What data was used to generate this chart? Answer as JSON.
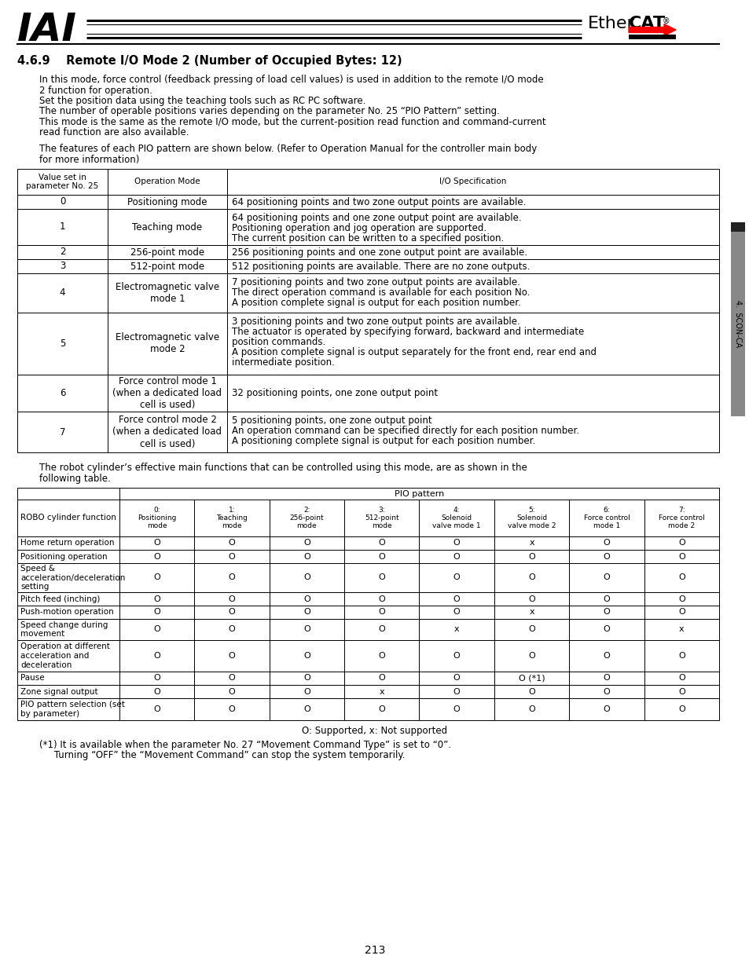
{
  "title_section": "4.6.9    Remote I/O Mode 2 (Number of Occupied Bytes: 12)",
  "intro_lines": [
    "In this mode, force control (feedback pressing of load cell values) is used in addition to the remote I/O mode",
    "2 function for operation.",
    "Set the position data using the teaching tools such as RC PC software.",
    "The number of operable positions varies depending on the parameter No. 25 “PIO Pattern” setting.",
    "This mode is the same as the remote I/O mode, but the current-position read function and command-current",
    "read function are also available."
  ],
  "features_line1": "The features of each PIO pattern are shown below. (Refer to Operation Manual for the controller main body",
  "features_line2": "for more information)",
  "t1_header": [
    "Value set in\nparameter No. 25",
    "Operation Mode",
    "I/O Specification"
  ],
  "t1_rows": [
    {
      "val": "0",
      "mode": "Positioning mode",
      "spec": [
        "64 positioning points and two zone output points are available."
      ]
    },
    {
      "val": "1",
      "mode": "Teaching mode",
      "spec": [
        "64 positioning points and one zone output point are available.",
        "Positioning operation and jog operation are supported.",
        "The current position can be written to a specified position."
      ]
    },
    {
      "val": "2",
      "mode": "256-point mode",
      "spec": [
        "256 positioning points and one zone output point are available."
      ]
    },
    {
      "val": "3",
      "mode": "512-point mode",
      "spec": [
        "512 positioning points are available. There are no zone outputs."
      ]
    },
    {
      "val": "4",
      "mode": "Electromagnetic valve\nmode 1",
      "spec": [
        "7 positioning points and two zone output points are available.",
        "The direct operation command is available for each position No.",
        "A position complete signal is output for each position number."
      ]
    },
    {
      "val": "5",
      "mode": "Electromagnetic valve\nmode 2",
      "spec": [
        "3 positioning points and two zone output points are available.",
        "The actuator is operated by specifying forward, backward and intermediate",
        "position commands.",
        "A position complete signal is output separately for the front end, rear end and",
        "intermediate position."
      ]
    },
    {
      "val": "6",
      "mode": "Force control mode 1\n(when a dedicated load\ncell is used)",
      "spec": [
        "32 positioning points, one zone output point"
      ]
    },
    {
      "val": "7",
      "mode": "Force control mode 2\n(when a dedicated load\ncell is used)",
      "spec": [
        "5 positioning points, one zone output point",
        "An operation command can be specified directly for each position number.",
        "A positioning complete signal is output for each position number."
      ]
    }
  ],
  "robot_line1": "The robot cylinder’s effective main functions that can be controlled using this mode, are as shown in the",
  "robot_line2": "following table.",
  "t2_pio_labels": [
    "0:\nPositioning\nmode",
    "1:\nTeaching\nmode",
    "2:\n256-point\nmode",
    "3:\n512-point\nmode",
    "4:\nSolenoid\nvalve mode 1",
    "5:\nSolenoid\nvalve mode 2",
    "6:\nForce control\nmode 1",
    "7:\nForce control\nmode 2"
  ],
  "t2_rows": [
    {
      "func": "Home return operation",
      "vals": [
        "O",
        "O",
        "O",
        "O",
        "O",
        "x",
        "O",
        "O"
      ]
    },
    {
      "func": "Positioning operation",
      "vals": [
        "O",
        "O",
        "O",
        "O",
        "O",
        "O",
        "O",
        "O"
      ]
    },
    {
      "func": "Speed &\nacceleration/deceleration\nsetting",
      "vals": [
        "O",
        "O",
        "O",
        "O",
        "O",
        "O",
        "O",
        "O"
      ]
    },
    {
      "func": "Pitch feed (inching)",
      "vals": [
        "O",
        "O",
        "O",
        "O",
        "O",
        "O",
        "O",
        "O"
      ]
    },
    {
      "func": "Push-motion operation",
      "vals": [
        "O",
        "O",
        "O",
        "O",
        "O",
        "x",
        "O",
        "O"
      ]
    },
    {
      "func": "Speed change during\nmovement",
      "vals": [
        "O",
        "O",
        "O",
        "O",
        "x",
        "O",
        "O",
        "x"
      ]
    },
    {
      "func": "Operation at different\nacceleration and\ndeceleration",
      "vals": [
        "O",
        "O",
        "O",
        "O",
        "O",
        "O",
        "O",
        "O"
      ]
    },
    {
      "func": "Pause",
      "vals": [
        "O",
        "O",
        "O",
        "O",
        "O",
        "O (*1)",
        "O",
        "O"
      ]
    },
    {
      "func": "Zone signal output",
      "vals": [
        "O",
        "O",
        "O",
        "x",
        "O",
        "O",
        "O",
        "O"
      ]
    },
    {
      "func": "PIO pattern selection (set\nby parameter)",
      "vals": [
        "O",
        "O",
        "O",
        "O",
        "O",
        "O",
        "O",
        "O"
      ]
    }
  ],
  "legend": "O: Supported, x: Not supported",
  "footnote1": "(*1) It is available when the parameter No. 27 “Movement Command Type” is set to “0”.",
  "footnote2": "     Turning “OFF” the “Movement Command” can stop the system temporarily.",
  "page_num": "213",
  "side_label": "4.  SCON-CA"
}
